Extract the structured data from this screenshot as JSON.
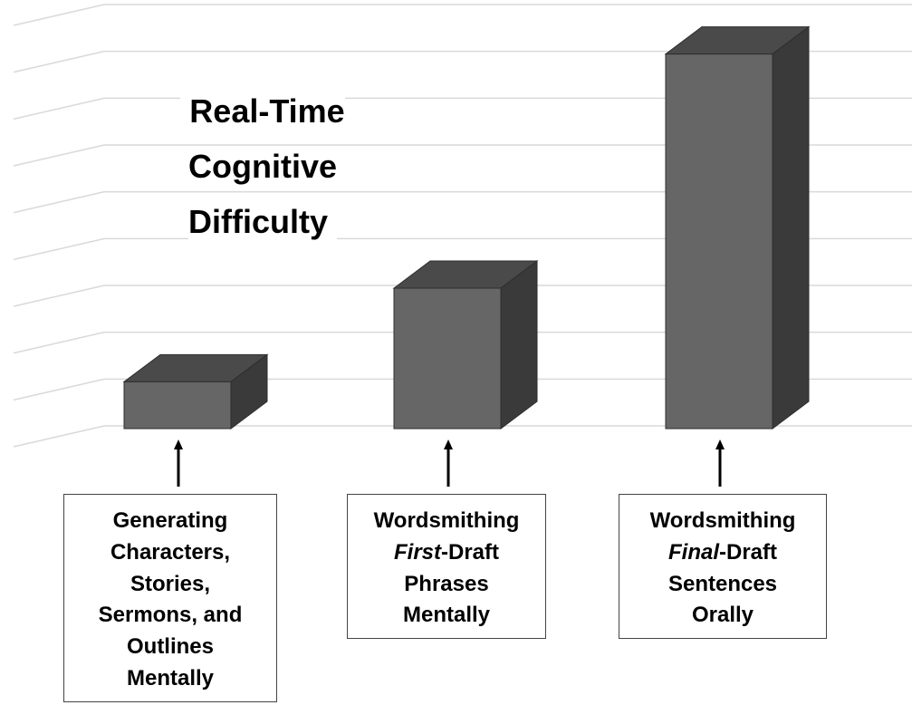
{
  "chart_data": {
    "type": "bar3d",
    "title": "Real-Time Cognitive Difficulty",
    "categories": [
      [
        "Generating",
        "Characters,",
        "Stories,",
        "Sermons, and",
        "Outlines",
        "Mentally"
      ],
      [
        "Wordsmithing",
        [
          {
            "text": "First",
            "italic": true
          },
          "-Draft"
        ],
        "Phrases",
        "Mentally"
      ],
      [
        "Wordsmithing",
        [
          {
            "text": "Final",
            "italic": true
          },
          "-Draft"
        ],
        "Sentences",
        "Orally"
      ]
    ],
    "values": [
      1,
      3,
      8
    ],
    "color": "#666666",
    "ylim": [
      0,
      9
    ],
    "yticks": [
      0,
      1,
      2,
      3,
      4,
      5,
      6,
      7,
      8,
      9
    ],
    "grid": true
  }
}
